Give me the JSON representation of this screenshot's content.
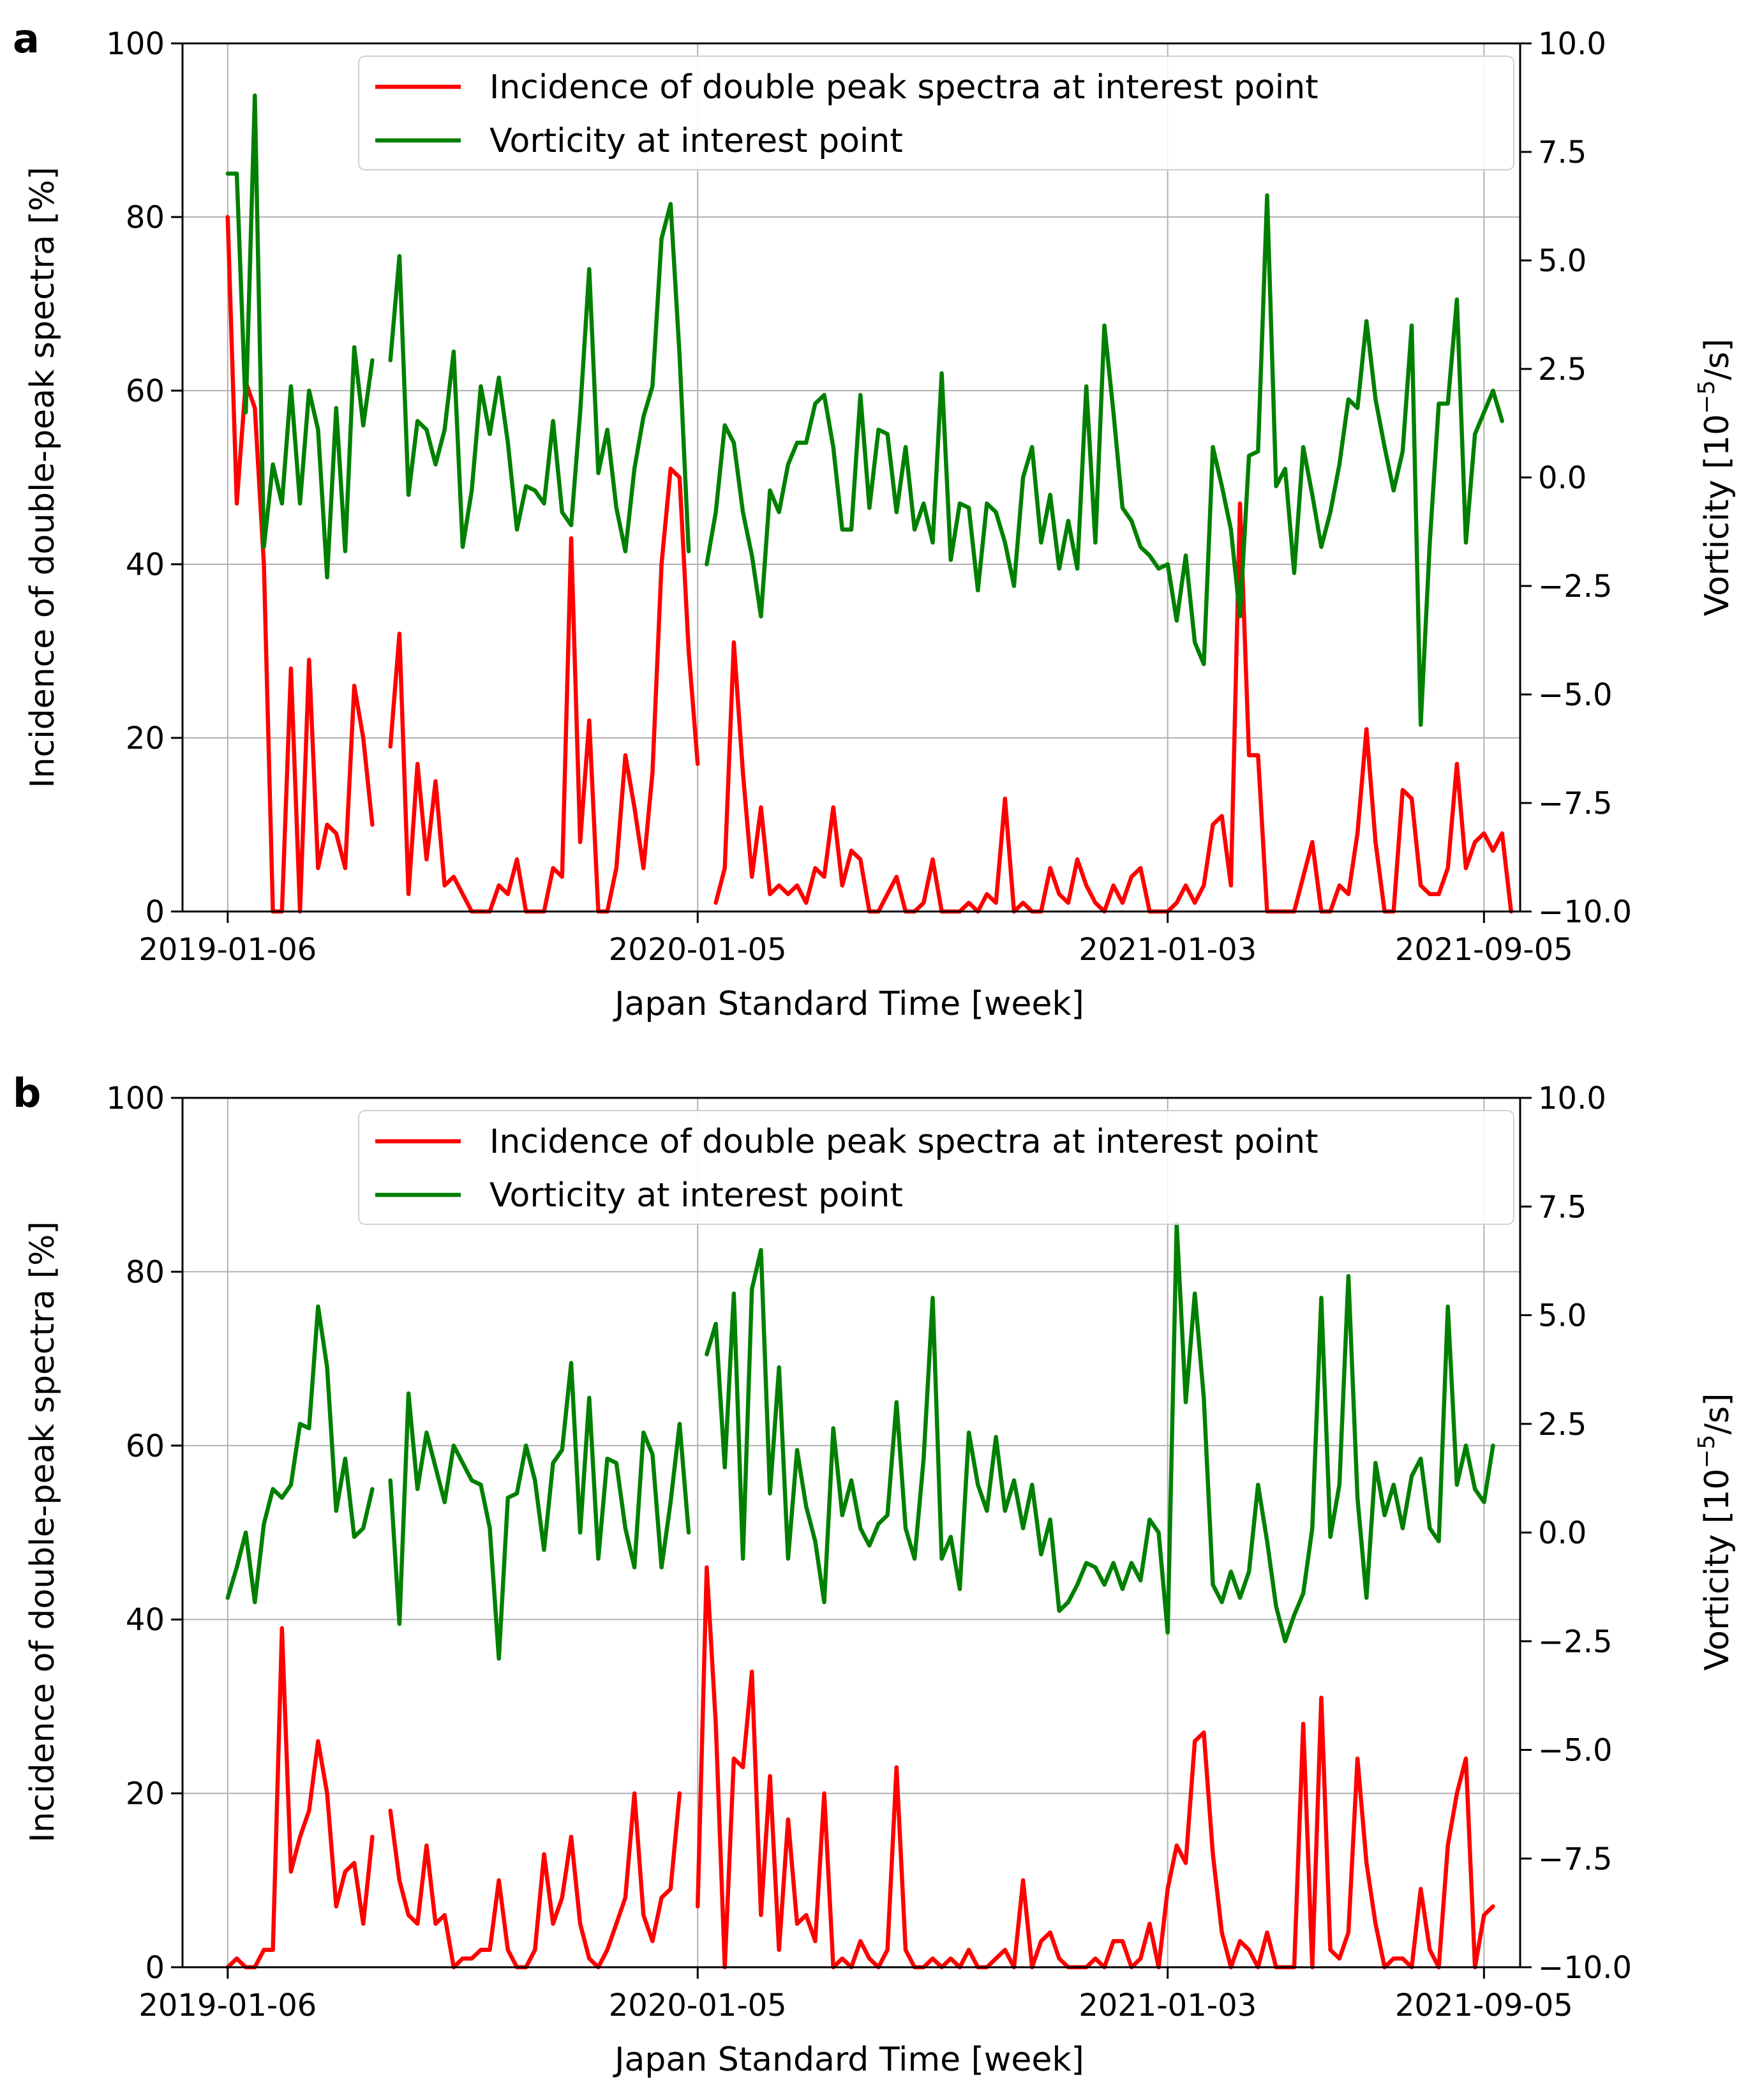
{
  "figure": {
    "panels": [
      "a",
      "b"
    ]
  },
  "colors": {
    "incidence": "#ff0000",
    "vorticity": "#008000",
    "grid": "#b0b0b0",
    "axis": "#000000"
  },
  "chart_data": [
    {
      "type": "line",
      "panel": "a",
      "xlabel": "Japan Standard Time [week]",
      "ylabel": "Incidence of double-peak spectra [%]",
      "y2label": "Vorticity [10^-5/s]",
      "xlim": [
        -5,
        143
      ],
      "ylim": [
        0,
        100
      ],
      "y2lim": [
        -10,
        10
      ],
      "xticks": [
        {
          "week": 0,
          "label": "2019-01-06"
        },
        {
          "week": 52,
          "label": "2020-01-05"
        },
        {
          "week": 104,
          "label": "2021-01-03"
        },
        {
          "week": 139,
          "label": "2021-09-05"
        }
      ],
      "yticks": [
        "0",
        "20",
        "40",
        "60",
        "80",
        "100"
      ],
      "y2ticks": [
        "−10.0",
        "−7.5",
        "−5.0",
        "−2.5",
        "0.0",
        "2.5",
        "5.0",
        "7.5",
        "10.0"
      ],
      "grid": true,
      "legend": {
        "position": "top-right",
        "entries": [
          "Incidence of double peak spectra at interest point",
          "Vorticity at interest point"
        ]
      },
      "series": [
        {
          "name": "Incidence of double peak spectra at interest point",
          "axis": "left",
          "color": "#ff0000",
          "values": [
            80,
            47,
            61,
            58,
            40,
            0,
            0,
            28,
            0,
            29,
            5,
            10,
            9,
            5,
            26,
            20,
            10,
            null,
            19,
            32,
            2,
            17,
            6,
            15,
            3,
            4,
            2,
            0,
            0,
            0,
            3,
            2,
            6,
            0,
            0,
            0,
            5,
            4,
            43,
            8,
            22,
            0,
            0,
            5,
            18,
            12,
            5,
            16,
            40,
            51,
            50,
            30,
            17,
            null,
            1,
            5,
            31,
            16,
            4,
            12,
            2,
            3,
            2,
            3,
            1,
            5,
            4,
            12,
            3,
            7,
            6,
            0,
            0,
            2,
            4,
            0,
            0,
            1,
            6,
            0,
            0,
            0,
            1,
            0,
            2,
            1,
            13,
            0,
            1,
            0,
            0,
            5,
            2,
            1,
            6,
            3,
            1,
            0,
            3,
            1,
            4,
            5,
            0,
            0,
            0,
            1,
            3,
            1,
            3,
            10,
            11,
            3,
            47,
            18,
            18,
            0,
            0,
            0,
            0,
            4,
            8,
            0,
            0,
            3,
            2,
            9,
            21,
            8,
            0,
            0,
            14,
            13,
            3,
            2,
            2,
            5,
            17,
            5,
            8,
            9,
            7,
            9,
            0
          ]
        },
        {
          "name": "Vorticity at interest point",
          "axis": "right",
          "color": "#008000",
          "values": [
            7,
            7,
            1.5,
            8.8,
            -1.6,
            0.3,
            -0.6,
            2.1,
            -0.6,
            2,
            1.1,
            -2.3,
            1.6,
            -1.7,
            3,
            1.2,
            2.7,
            null,
            2.7,
            5.1,
            -0.4,
            1.3,
            1.1,
            0.3,
            1.1,
            2.9,
            -1.6,
            -0.3,
            2.1,
            1,
            2.3,
            0.8,
            -1.2,
            -0.2,
            -0.3,
            -0.6,
            1.3,
            -0.8,
            -1.1,
            1.5,
            4.8,
            0.1,
            1.1,
            -0.7,
            -1.7,
            0.2,
            1.4,
            2.1,
            5.5,
            6.3,
            2.8,
            -1.7,
            null,
            -2,
            -0.8,
            1.2,
            0.8,
            -0.8,
            -1.8,
            -3.2,
            -0.3,
            -0.8,
            0.3,
            0.8,
            0.8,
            1.7,
            1.9,
            0.7,
            -1.2,
            -1.2,
            1.9,
            -0.7,
            1.1,
            1,
            -0.8,
            0.7,
            -1.2,
            -0.6,
            -1.5,
            2.4,
            -1.9,
            -0.6,
            -0.7,
            -2.6,
            -0.6,
            -0.8,
            -1.5,
            -2.5,
            0,
            0.7,
            -1.5,
            -0.4,
            -2.1,
            -1,
            -2.1,
            2.1,
            -1.5,
            3.5,
            1.5,
            -0.7,
            -1,
            -1.6,
            -1.8,
            -2.1,
            -2,
            -3.3,
            -1.8,
            -3.8,
            -4.3,
            0.7,
            -0.2,
            -1.2,
            -3.2,
            0.5,
            0.6,
            6.5,
            -0.2,
            0.2,
            -2.2,
            0.7,
            -0.4,
            -1.6,
            -0.8,
            0.3,
            1.8,
            1.6,
            3.6,
            1.8,
            0.7,
            -0.3,
            0.6,
            3.5,
            -5.7,
            -1.5,
            1.7,
            1.7,
            4.1,
            -1.5,
            1,
            1.5,
            2,
            1.3
          ]
        }
      ]
    },
    {
      "type": "line",
      "panel": "b",
      "xlabel": "Japan Standard Time [week]",
      "ylabel": "Incidence of double-peak spectra [%]",
      "y2label": "Vorticity [10^-5/s]",
      "xlim": [
        -5,
        143
      ],
      "ylim": [
        0,
        100
      ],
      "y2lim": [
        -10,
        10
      ],
      "xticks": [
        {
          "week": 0,
          "label": "2019-01-06"
        },
        {
          "week": 52,
          "label": "2020-01-05"
        },
        {
          "week": 104,
          "label": "2021-01-03"
        },
        {
          "week": 139,
          "label": "2021-09-05"
        }
      ],
      "yticks": [
        "0",
        "20",
        "40",
        "60",
        "80",
        "100"
      ],
      "y2ticks": [
        "−10.0",
        "−7.5",
        "−5.0",
        "−2.5",
        "0.0",
        "2.5",
        "5.0",
        "7.5",
        "10.0"
      ],
      "grid": true,
      "legend": {
        "position": "top-right",
        "entries": [
          "Incidence of double peak spectra at interest point",
          "Vorticity at interest point"
        ]
      },
      "series": [
        {
          "name": "Incidence of double peak spectra at interest point",
          "axis": "left",
          "color": "#ff0000",
          "values": [
            0,
            1,
            0,
            0,
            2,
            2,
            39,
            11,
            15,
            18,
            26,
            20,
            7,
            11,
            12,
            5,
            15,
            null,
            18,
            10,
            6,
            5,
            14,
            5,
            6,
            0,
            1,
            1,
            2,
            2,
            10,
            2,
            0,
            0,
            2,
            13,
            5,
            8,
            15,
            5,
            1,
            0,
            2,
            5,
            8,
            20,
            6,
            3,
            8,
            9,
            20,
            null,
            7,
            46,
            28,
            0,
            24,
            23,
            34,
            6,
            22,
            2,
            17,
            5,
            6,
            3,
            20,
            0,
            1,
            0,
            3,
            1,
            0,
            2,
            23,
            2,
            0,
            0,
            1,
            0,
            1,
            0,
            2,
            0,
            0,
            1,
            2,
            0,
            10,
            0,
            3,
            4,
            1,
            0,
            0,
            0,
            1,
            0,
            3,
            3,
            0,
            1,
            5,
            0,
            9,
            14,
            12,
            26,
            27,
            13,
            4,
            0,
            3,
            2,
            0,
            4,
            0,
            0,
            0,
            28,
            0,
            31,
            2,
            1,
            4,
            24,
            12,
            5,
            0,
            1,
            1,
            0,
            9,
            2,
            0,
            14,
            20,
            24,
            0,
            6,
            7
          ]
        },
        {
          "name": "Vorticity at interest point",
          "axis": "right",
          "color": "#008000",
          "values": [
            -1.5,
            -0.8,
            0,
            -1.6,
            0.2,
            1,
            0.8,
            1.1,
            2.5,
            2.4,
            5.2,
            3.8,
            0.5,
            1.7,
            -0.1,
            0.1,
            1,
            null,
            1.2,
            -2.1,
            3.2,
            1,
            2.3,
            1.5,
            0.7,
            2,
            1.6,
            1.2,
            1.1,
            0.1,
            -2.9,
            0.8,
            0.9,
            2,
            1.2,
            -0.4,
            1.6,
            1.9,
            3.9,
            0,
            3.1,
            -0.6,
            1.7,
            1.6,
            0.1,
            -0.8,
            2.3,
            1.8,
            -0.8,
            0.7,
            2.5,
            0,
            null,
            4.1,
            4.8,
            1.5,
            5.5,
            -0.6,
            5.6,
            6.5,
            0.9,
            3.8,
            -0.6,
            1.9,
            0.6,
            -0.2,
            -1.6,
            2.4,
            0.4,
            1.2,
            0.1,
            -0.3,
            0.2,
            0.4,
            3,
            0.1,
            -0.6,
            1.7,
            5.4,
            -0.6,
            -0.1,
            -1.3,
            2.3,
            1.1,
            0.5,
            2.2,
            0.5,
            1.2,
            0.1,
            1.1,
            -0.5,
            0.3,
            -1.8,
            -1.6,
            -1.2,
            -0.7,
            -0.8,
            -1.2,
            -0.7,
            -1.3,
            -0.7,
            -1.1,
            0.3,
            0,
            -2.3,
            7.1,
            3,
            5.5,
            3.1,
            -1.2,
            -1.6,
            -0.9,
            -1.5,
            -0.9,
            1.1,
            -0.2,
            -1.7,
            -2.5,
            -1.9,
            -1.4,
            0.1,
            5.4,
            -0.1,
            1.1,
            5.9,
            0.8,
            -1.5,
            1.6,
            0.4,
            1.1,
            0.1,
            1.3,
            1.7,
            0.1,
            -0.2,
            5.2,
            1.1,
            2,
            1,
            0.7,
            2
          ]
        }
      ]
    }
  ]
}
